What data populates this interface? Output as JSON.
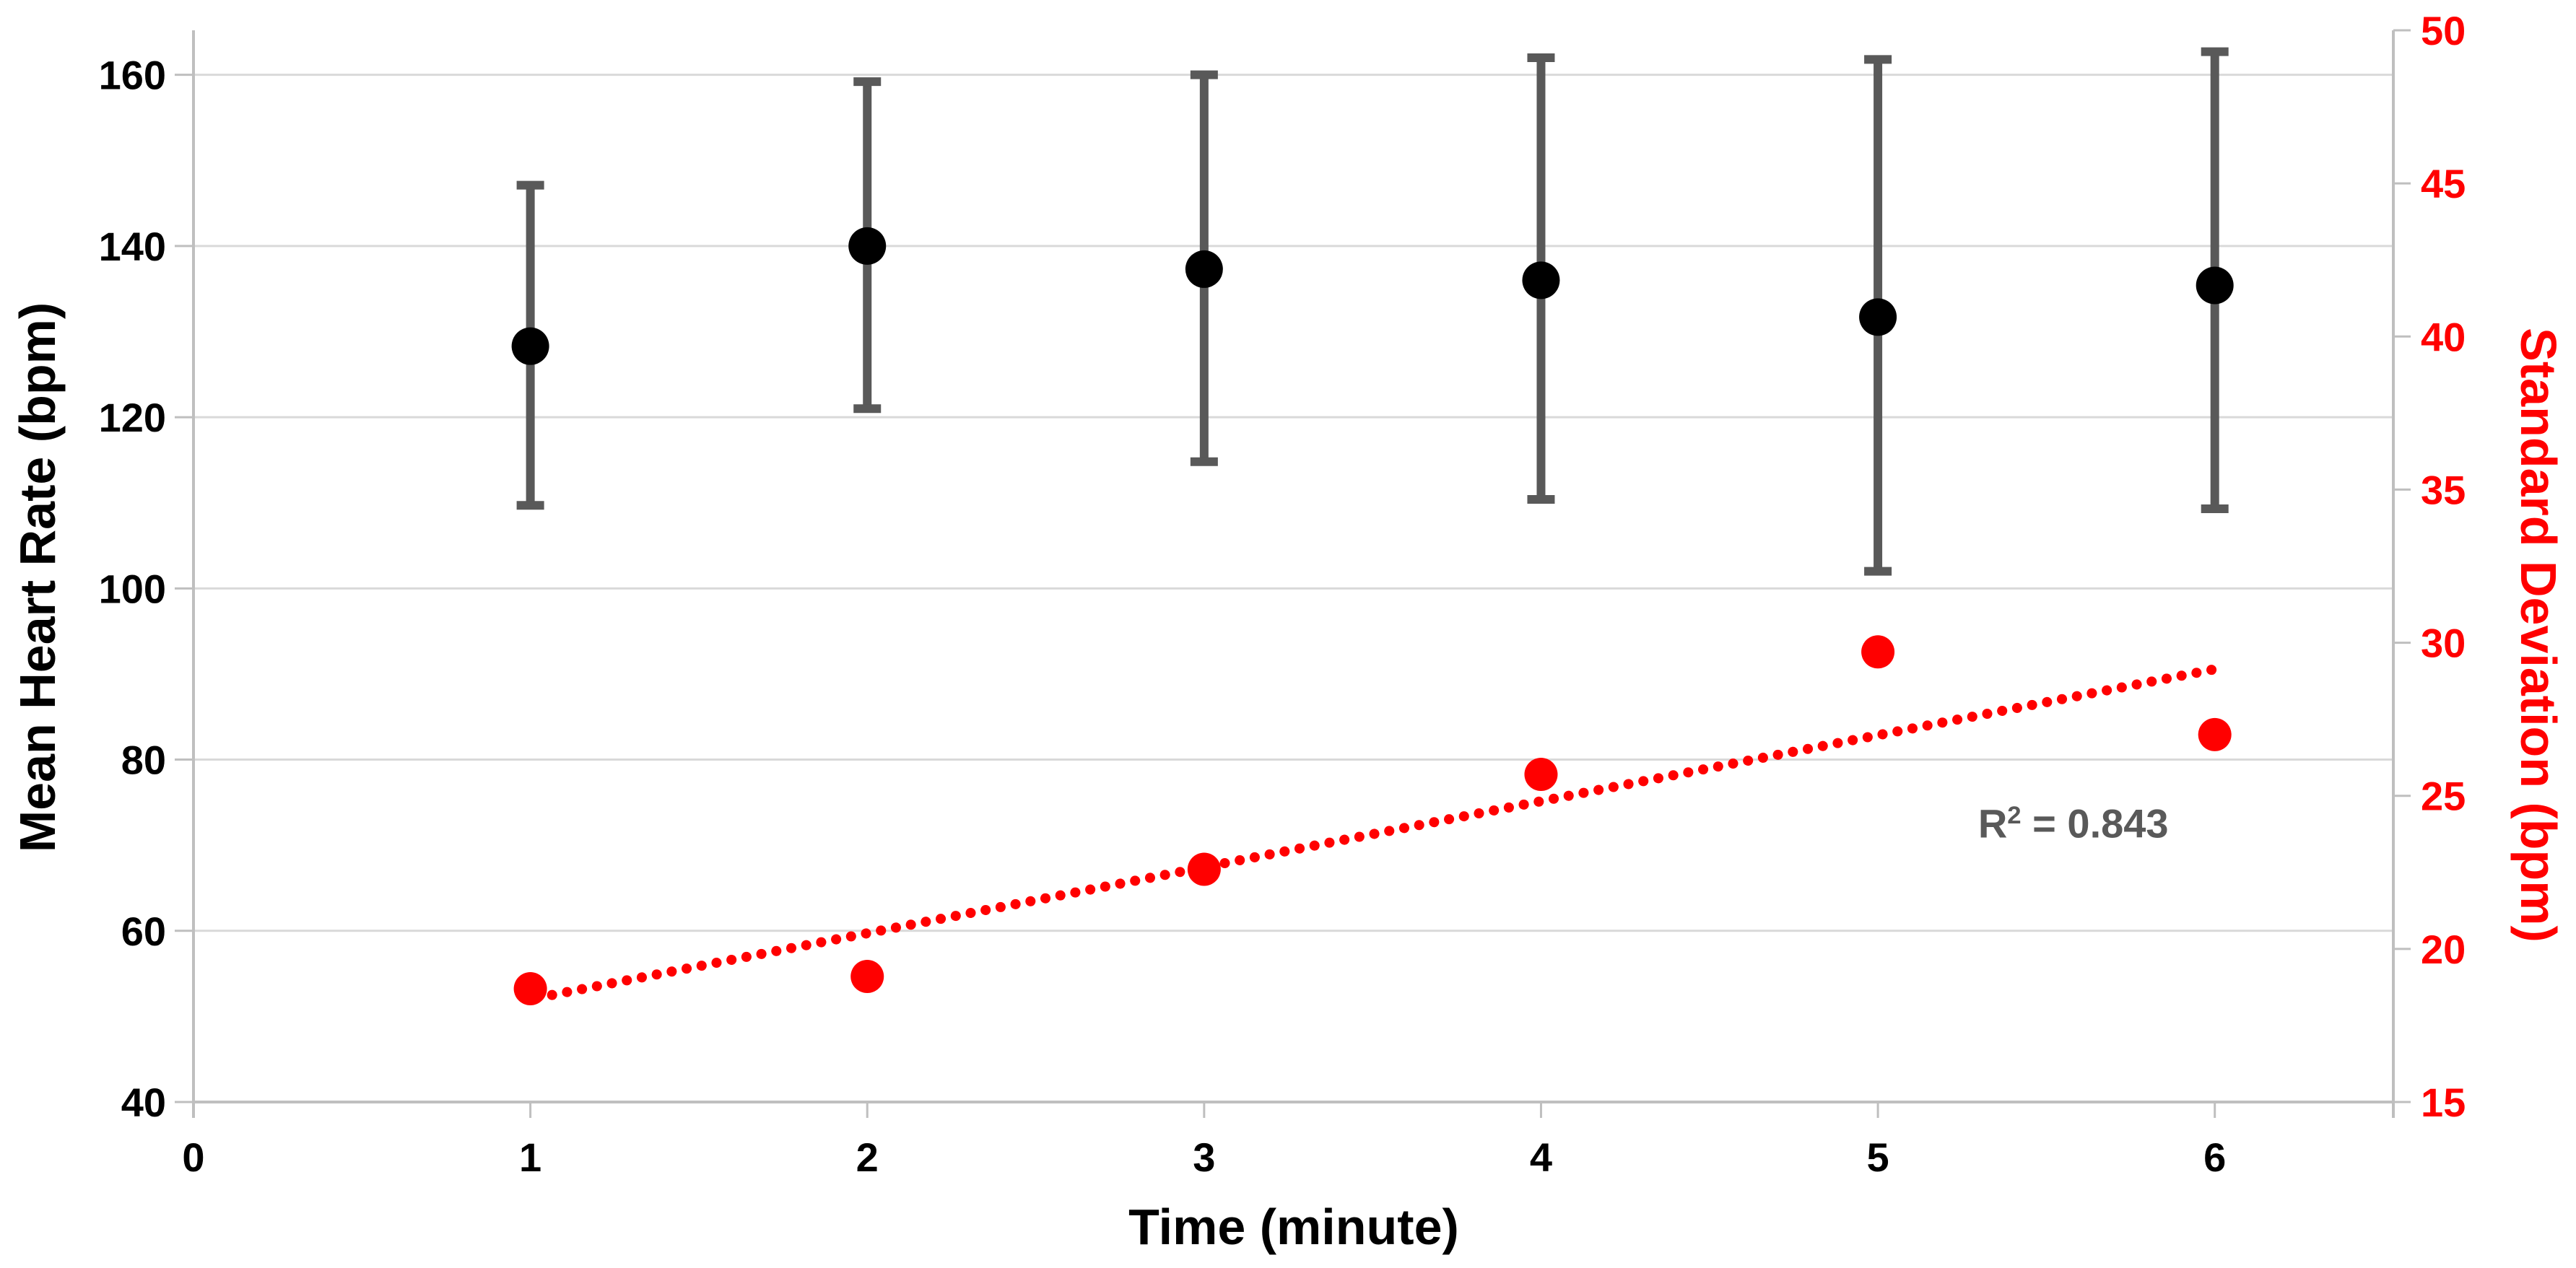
{
  "chart_data": {
    "type": "scatter",
    "xlabel": "Time (minute)",
    "ylabel_left": "Mean Heart Rate (bpm)",
    "ylabel_right": "Standard Deviation (bpm)",
    "grid": true,
    "legend": "none",
    "x_ticks": [
      0,
      1,
      2,
      3,
      4,
      5,
      6
    ],
    "x_range": [
      0,
      6.53
    ],
    "left_axis": {
      "min": 40,
      "max": 165.2,
      "ticks": [
        40,
        60,
        80,
        100,
        120,
        140,
        160
      ]
    },
    "right_axis": {
      "min": 15,
      "max": 50,
      "ticks": [
        15,
        20,
        25,
        30,
        35,
        40,
        45,
        50
      ]
    },
    "series": [
      {
        "name": "Mean Heart Rate",
        "axis": "left",
        "marker_color": "#000000",
        "errorbar_color": "#595959",
        "points": [
          {
            "x": 1,
            "y": 128.3,
            "lower": 109.7,
            "upper": 147.1
          },
          {
            "x": 2,
            "y": 140.0,
            "lower": 121.0,
            "upper": 159.2
          },
          {
            "x": 3,
            "y": 137.3,
            "lower": 114.8,
            "upper": 160.0
          },
          {
            "x": 4,
            "y": 136.0,
            "lower": 110.4,
            "upper": 162.0
          },
          {
            "x": 5,
            "y": 131.7,
            "lower": 102.0,
            "upper": 161.8
          },
          {
            "x": 6,
            "y": 135.4,
            "lower": 109.3,
            "upper": 162.7
          }
        ]
      },
      {
        "name": "Standard Deviation",
        "axis": "right",
        "marker_color": "#FF0000",
        "points": [
          {
            "x": 1,
            "y": 18.7
          },
          {
            "x": 2,
            "y": 19.1
          },
          {
            "x": 3,
            "y": 22.6
          },
          {
            "x": 4,
            "y": 25.7
          },
          {
            "x": 5,
            "y": 29.7
          },
          {
            "x": 6,
            "y": 27.0
          }
        ]
      }
    ],
    "trendline": {
      "axis": "right",
      "style": "dotted",
      "color": "#FF0000",
      "x1": 1.02,
      "y1": 18.4,
      "x2": 6.03,
      "y2": 29.2
    },
    "annotation": {
      "prefix": "R",
      "sup": "2",
      "rest": " = 0.843",
      "x": 5.58,
      "y": 24.1,
      "color": "#595959"
    }
  },
  "colors": {
    "background": "#FFFFFF",
    "gridline": "#D9D9D9",
    "axis_line": "#BFBFBF",
    "left_tick_text": "#000000",
    "right_tick_text": "#FF0000",
    "mean_series": "#000000",
    "errorbar": "#595959",
    "sd_series": "#FF0000",
    "annotation_text": "#595959"
  }
}
